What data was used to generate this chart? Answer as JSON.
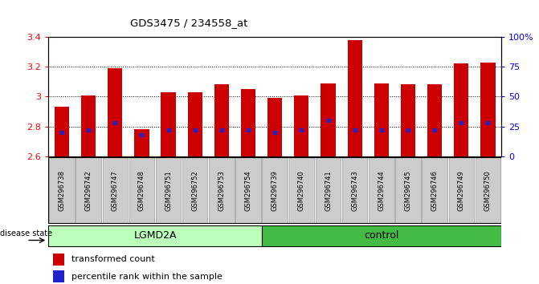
{
  "title": "GDS3475 / 234558_at",
  "samples": [
    "GSM296738",
    "GSM296742",
    "GSM296747",
    "GSM296748",
    "GSM296751",
    "GSM296752",
    "GSM296753",
    "GSM296754",
    "GSM296739",
    "GSM296740",
    "GSM296741",
    "GSM296743",
    "GSM296744",
    "GSM296745",
    "GSM296746",
    "GSM296749",
    "GSM296750"
  ],
  "transformed_count": [
    2.93,
    3.01,
    3.19,
    2.78,
    3.03,
    3.03,
    3.08,
    3.05,
    2.99,
    3.01,
    3.09,
    3.38,
    3.09,
    3.08,
    3.08,
    3.22,
    3.23
  ],
  "percentile_rank": [
    20,
    22,
    28,
    18,
    22,
    22,
    22,
    22,
    20,
    22,
    30,
    22,
    22,
    22,
    22,
    28,
    28
  ],
  "ylim_left": [
    2.6,
    3.4
  ],
  "ylim_right": [
    0,
    100
  ],
  "yticks_left": [
    2.6,
    2.8,
    3.0,
    3.2,
    3.4
  ],
  "yticks_right": [
    0,
    25,
    50,
    75,
    100
  ],
  "bar_color": "#CC0000",
  "marker_color": "#2222CC",
  "lgmd2a_color": "#BBFFBB",
  "control_color": "#44BB44",
  "lgmd2a_samples": 8,
  "control_samples": 9,
  "grid_values": [
    2.8,
    3.0,
    3.2
  ],
  "bar_bottom": 2.6,
  "label_red": "transformed count",
  "label_blue": "percentile rank within the sample",
  "disease_state_label": "disease state",
  "lgmd2a_label": "LGMD2A",
  "control_label": "control",
  "xlabel_gray_bg": "#CCCCCC"
}
